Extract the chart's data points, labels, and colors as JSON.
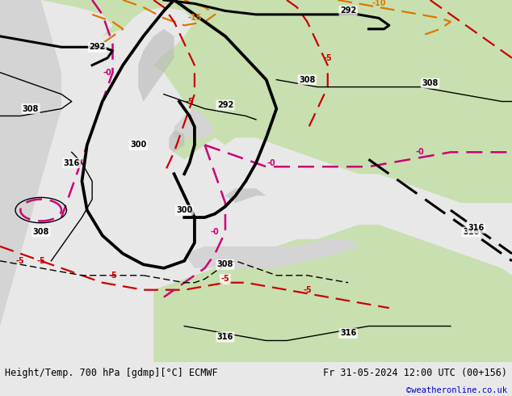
{
  "title_left": "Height/Temp. 700 hPa [gdmp][°C] ECMWF",
  "title_right": "Fr 31-05-2024 12:00 UTC (00+156)",
  "credit": "©weatheronline.co.uk",
  "fig_width": 6.34,
  "fig_height": 4.9,
  "dpi": 100,
  "ocean_color": "#d4d4d4",
  "land_color": "#c8e0b0",
  "mountain_color": "#b8b8b8",
  "bottom_bar_color": "#e8e8e8",
  "text_color": "#000000",
  "credit_color": "#0000cc",
  "font_size_title": 8.5,
  "font_size_credit": 7.5,
  "black_lw": 2.2,
  "thin_black_lw": 1.0,
  "red_lw": 1.6,
  "pink_lw": 1.8
}
